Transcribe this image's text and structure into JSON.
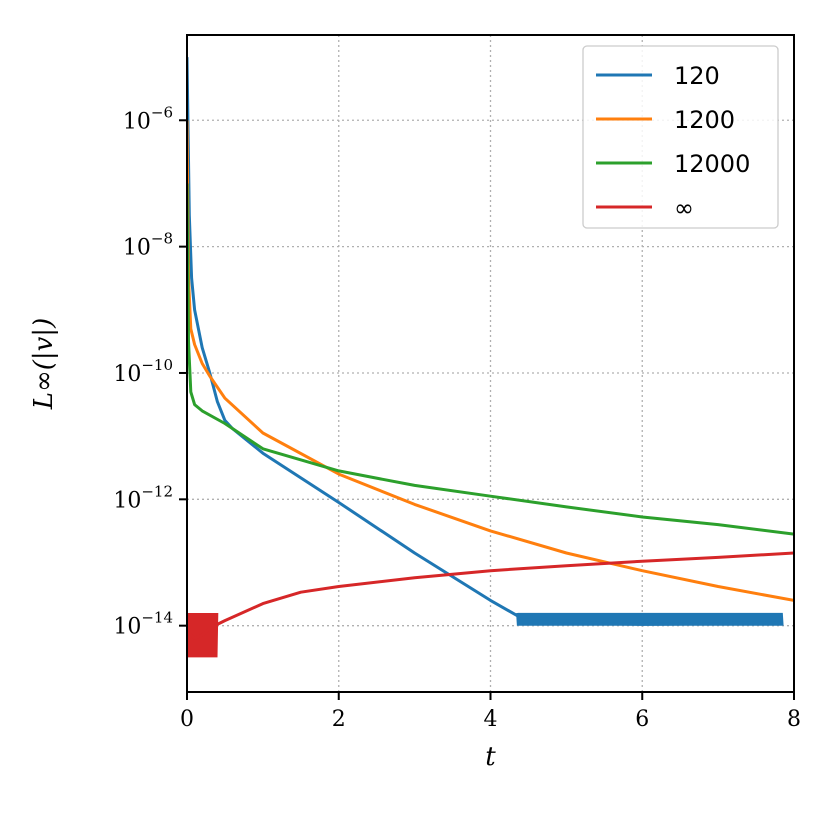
{
  "chart_data": {
    "type": "line",
    "xlabel": "t",
    "ylabel": "L∞(|v|)",
    "x_scale": "linear",
    "y_scale": "log",
    "xlim": [
      0,
      8
    ],
    "ylim_log10": [
      -15.05,
      -4.65
    ],
    "x_ticks": [
      0,
      2,
      4,
      6,
      8
    ],
    "y_ticks_exponent": [
      -6,
      -8,
      -10,
      -12,
      -14
    ],
    "y_tick_base": "10",
    "grid": true,
    "legend_position": "top-right",
    "series": [
      {
        "name": "120",
        "color": "#1f77b4",
        "log10_values": [
          [
            0.0,
            -5.0
          ],
          [
            0.03,
            -7.5
          ],
          [
            0.06,
            -8.5
          ],
          [
            0.1,
            -9.0
          ],
          [
            0.2,
            -9.6
          ],
          [
            0.3,
            -10.0
          ],
          [
            0.4,
            -10.45
          ],
          [
            0.5,
            -10.75
          ],
          [
            0.6,
            -10.88
          ],
          [
            1.0,
            -11.27
          ],
          [
            2.0,
            -12.05
          ],
          [
            3.0,
            -12.85
          ],
          [
            4.0,
            -13.6
          ],
          [
            4.35,
            -13.84
          ],
          [
            5.0,
            -13.93
          ],
          [
            5.5,
            -13.97
          ],
          [
            6.0,
            -13.98
          ],
          [
            7.0,
            -13.97
          ],
          [
            7.85,
            -13.95
          ]
        ],
        "noise_band": {
          "from": 4.35,
          "to": 7.85,
          "low_log10": -14.0,
          "high_log10": -13.8
        }
      },
      {
        "name": "1200",
        "color": "#ff7f0e",
        "log10_values": [
          [
            0.0,
            -6.0
          ],
          [
            0.02,
            -8.5
          ],
          [
            0.05,
            -9.3
          ],
          [
            0.1,
            -9.55
          ],
          [
            0.2,
            -9.85
          ],
          [
            0.3,
            -10.05
          ],
          [
            0.5,
            -10.4
          ],
          [
            1.0,
            -10.95
          ],
          [
            2.0,
            -11.6
          ],
          [
            3.0,
            -12.08
          ],
          [
            4.0,
            -12.5
          ],
          [
            5.0,
            -12.85
          ],
          [
            6.0,
            -13.13
          ],
          [
            7.0,
            -13.38
          ],
          [
            8.0,
            -13.6
          ]
        ]
      },
      {
        "name": "12000",
        "color": "#2ca02c",
        "log10_values": [
          [
            0.0,
            -7.0
          ],
          [
            0.02,
            -9.5
          ],
          [
            0.05,
            -10.3
          ],
          [
            0.1,
            -10.5
          ],
          [
            0.2,
            -10.6
          ],
          [
            0.5,
            -10.8
          ],
          [
            1.0,
            -11.2
          ],
          [
            2.0,
            -11.55
          ],
          [
            3.0,
            -11.78
          ],
          [
            4.0,
            -11.95
          ],
          [
            5.0,
            -12.12
          ],
          [
            6.0,
            -12.28
          ],
          [
            7.0,
            -12.4
          ],
          [
            8.0,
            -12.55
          ]
        ]
      },
      {
        "name": "∞",
        "color": "#d62728",
        "log10_values": [
          [
            0.0,
            -14.1
          ],
          [
            0.1,
            -14.2
          ],
          [
            0.2,
            -14.15
          ],
          [
            0.3,
            -14.05
          ],
          [
            0.4,
            -13.98
          ],
          [
            0.5,
            -13.92
          ],
          [
            1.0,
            -13.65
          ],
          [
            1.5,
            -13.47
          ],
          [
            2.0,
            -13.38
          ],
          [
            3.0,
            -13.24
          ],
          [
            4.0,
            -13.13
          ],
          [
            5.0,
            -13.05
          ],
          [
            6.0,
            -12.98
          ],
          [
            7.0,
            -12.92
          ],
          [
            8.0,
            -12.85
          ]
        ],
        "noise_band": {
          "from": 0.0,
          "to": 0.4,
          "low_log10": -14.5,
          "high_log10": -13.8
        }
      }
    ]
  }
}
